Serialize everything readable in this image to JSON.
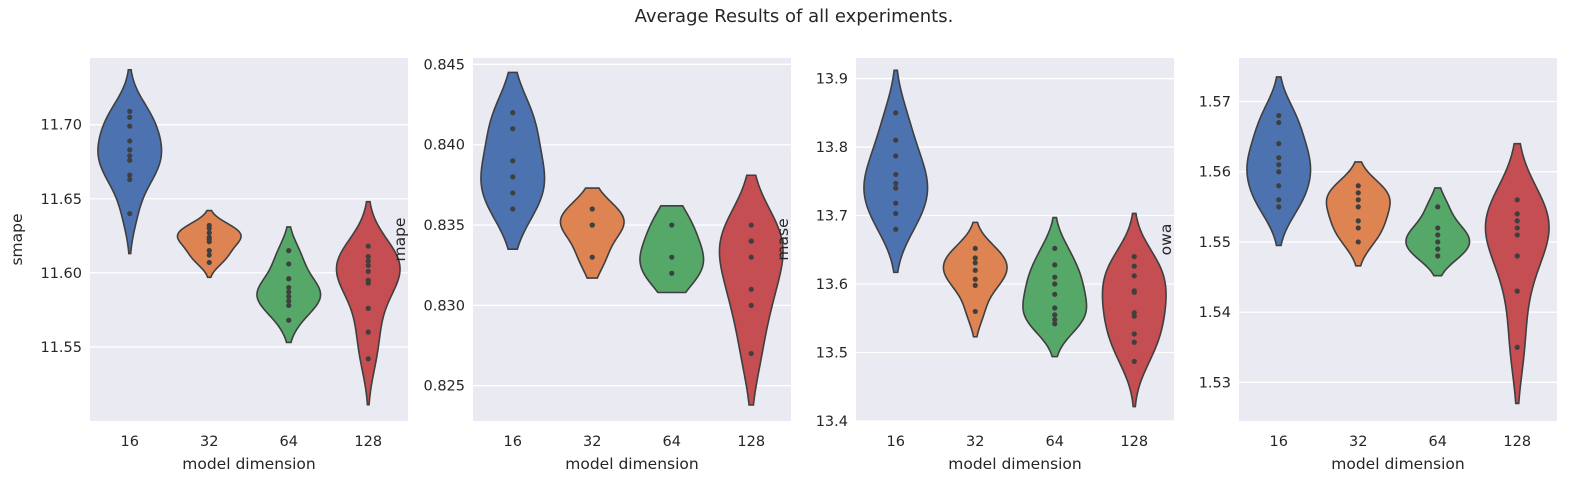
{
  "title": "Average Results of all experiments.",
  "colors": {
    "background": "#eaeaf2",
    "grid": "#ffffff",
    "outline": "#3f3f3f",
    "point": "#3f3f3f",
    "palette": [
      "#4c72b0",
      "#dd8452",
      "#55a868",
      "#c44e52"
    ]
  },
  "chart_data": [
    {
      "type": "violin",
      "xlabel": "model dimension",
      "ylabel": "smape",
      "categories": [
        "16",
        "32",
        "64",
        "128"
      ],
      "ylim": [
        11.5,
        11.745
      ],
      "yticks": [
        11.55,
        11.6,
        11.65,
        11.7
      ],
      "ytick_labels": [
        "11.55",
        "11.60",
        "11.65",
        "11.70"
      ],
      "series": [
        {
          "name": "16",
          "values": [
            11.64,
            11.663,
            11.666,
            11.676,
            11.679,
            11.683,
            11.689,
            11.699,
            11.705,
            11.709
          ],
          "extent": [
            11.613,
            11.737
          ]
        },
        {
          "name": "32",
          "values": [
            11.607,
            11.612,
            11.615,
            11.621,
            11.623,
            11.624,
            11.627,
            11.63,
            11.632
          ],
          "extent": [
            11.597,
            11.642
          ]
        },
        {
          "name": "64",
          "values": [
            11.568,
            11.578,
            11.581,
            11.584,
            11.587,
            11.59,
            11.596,
            11.606,
            11.615
          ],
          "extent": [
            11.553,
            11.631
          ]
        },
        {
          "name": "128",
          "values": [
            11.542,
            11.56,
            11.576,
            11.593,
            11.595,
            11.601,
            11.605,
            11.608,
            11.611,
            11.618
          ],
          "extent": [
            11.511,
            11.648
          ]
        }
      ]
    },
    {
      "type": "violin",
      "xlabel": "model dimension",
      "ylabel": "mape",
      "categories": [
        "16",
        "32",
        "64",
        "128"
      ],
      "ylim": [
        0.8228,
        0.8454
      ],
      "yticks": [
        0.825,
        0.83,
        0.835,
        0.84,
        0.845
      ],
      "ytick_labels": [
        "0.825",
        "0.830",
        "0.835",
        "0.840",
        "0.845"
      ],
      "series": [
        {
          "name": "16",
          "values": [
            0.836,
            0.837,
            0.838,
            0.839,
            0.841,
            0.842
          ],
          "extent": [
            0.8335,
            0.8445
          ]
        },
        {
          "name": "32",
          "values": [
            0.833,
            0.835,
            0.835,
            0.836
          ],
          "extent": [
            0.8317,
            0.8373
          ]
        },
        {
          "name": "64",
          "values": [
            0.832,
            0.833,
            0.835
          ],
          "extent": [
            0.8308,
            0.8362
          ]
        },
        {
          "name": "128",
          "values": [
            0.827,
            0.83,
            0.831,
            0.833,
            0.834,
            0.834,
            0.835
          ],
          "extent": [
            0.8238,
            0.8381
          ]
        }
      ]
    },
    {
      "type": "violin",
      "xlabel": "model dimension",
      "ylabel": "mase",
      "categories": [
        "16",
        "32",
        "64",
        "128"
      ],
      "ylim": [
        13.4,
        13.93
      ],
      "yticks": [
        13.4,
        13.5,
        13.6,
        13.7,
        13.8,
        13.9
      ],
      "ytick_labels": [
        "13.4",
        "13.5",
        "13.6",
        "13.7",
        "13.8",
        "13.9"
      ],
      "series": [
        {
          "name": "16",
          "values": [
            13.68,
            13.703,
            13.718,
            13.74,
            13.747,
            13.76,
            13.787,
            13.81,
            13.85
          ],
          "extent": [
            13.617,
            13.912
          ]
        },
        {
          "name": "32",
          "values": [
            13.56,
            13.598,
            13.607,
            13.62,
            13.631,
            13.638,
            13.652
          ],
          "extent": [
            13.523,
            13.69
          ]
        },
        {
          "name": "64",
          "values": [
            13.542,
            13.548,
            13.555,
            13.565,
            13.585,
            13.6,
            13.61,
            13.628,
            13.652
          ],
          "extent": [
            13.494,
            13.697
          ]
        },
        {
          "name": "128",
          "values": [
            13.487,
            13.515,
            13.527,
            13.553,
            13.558,
            13.588,
            13.59,
            13.612,
            13.626,
            13.64
          ],
          "extent": [
            13.421,
            13.703
          ]
        }
      ]
    },
    {
      "type": "violin",
      "xlabel": "model dimension",
      "ylabel": "owa",
      "categories": [
        "16",
        "32",
        "64",
        "128"
      ],
      "ylim": [
        1.5245,
        1.5762
      ],
      "yticks": [
        1.53,
        1.54,
        1.55,
        1.56,
        1.57
      ],
      "ytick_labels": [
        "1.53",
        "1.54",
        "1.55",
        "1.56",
        "1.57"
      ],
      "series": [
        {
          "name": "16",
          "values": [
            1.555,
            1.556,
            1.558,
            1.56,
            1.561,
            1.562,
            1.564,
            1.567,
            1.568
          ],
          "extent": [
            1.5495,
            1.5735
          ]
        },
        {
          "name": "32",
          "values": [
            1.55,
            1.552,
            1.553,
            1.555,
            1.556,
            1.557,
            1.558
          ],
          "extent": [
            1.5466,
            1.5614
          ]
        },
        {
          "name": "64",
          "values": [
            1.548,
            1.549,
            1.55,
            1.551,
            1.552,
            1.555
          ],
          "extent": [
            1.5452,
            1.5577
          ]
        },
        {
          "name": "128",
          "values": [
            1.535,
            1.543,
            1.548,
            1.551,
            1.552,
            1.553,
            1.554,
            1.556
          ],
          "extent": [
            1.527,
            1.564
          ]
        }
      ]
    }
  ]
}
